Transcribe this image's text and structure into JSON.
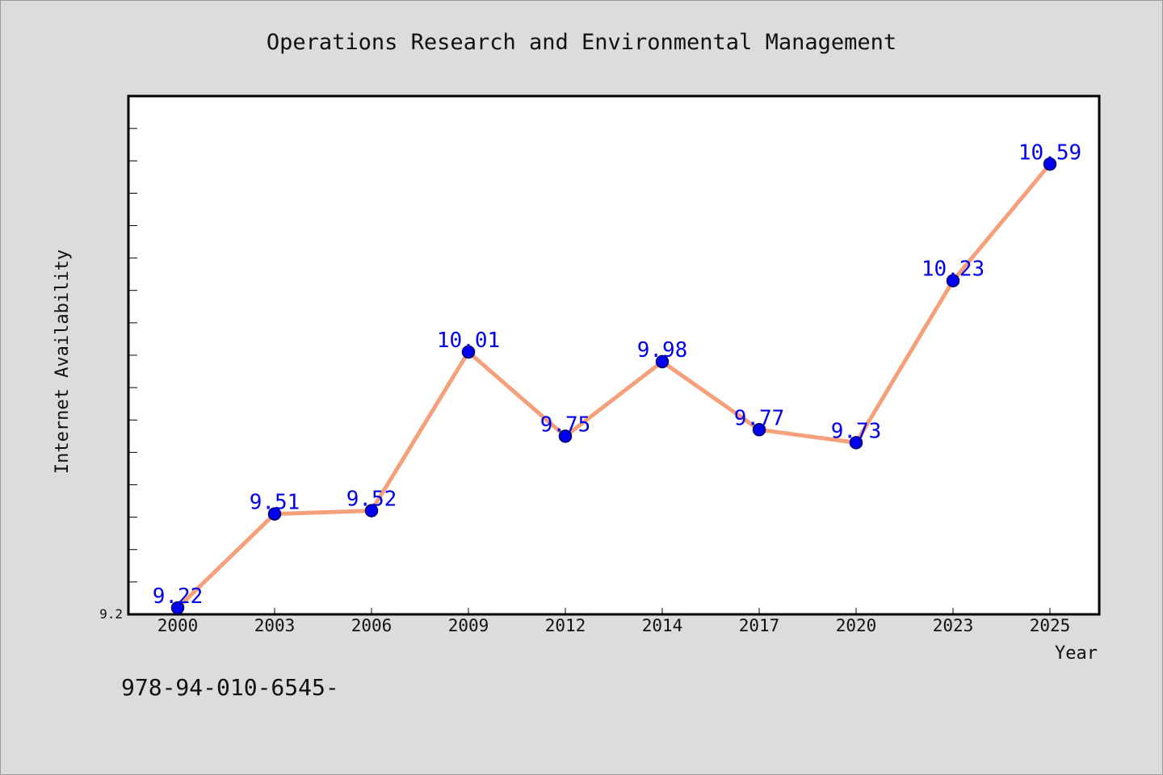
{
  "chart_data": {
    "type": "line",
    "title": "Operations Research and Environmental Management",
    "xlabel": "Year",
    "ylabel": "Internet Availability",
    "categories": [
      "2000",
      "2003",
      "2006",
      "2009",
      "2012",
      "2014",
      "2017",
      "2020",
      "2023",
      "2025"
    ],
    "series": [
      {
        "values": [
          9.22,
          9.51,
          9.52,
          10.01,
          9.75,
          9.98,
          9.77,
          9.73,
          10.23,
          10.59
        ],
        "data_labels": [
          "9.22",
          "9.51",
          "9.52",
          "10.01",
          "9.75",
          "9.98",
          "9.77",
          "9.73",
          "10.23",
          "10.59"
        ]
      }
    ],
    "y_tick_labels": [
      "9.2"
    ],
    "ylim": [
      9.2,
      10.8
    ],
    "grid": false,
    "colors": {
      "line": "#f5a07a",
      "marker": "#0000ee",
      "marker_edge": "#000066",
      "data_label": "#0000ee",
      "plot_background": "#ffffff",
      "figure_background": "#dcdcdc"
    }
  },
  "footnote": "978-94-010-6545-"
}
